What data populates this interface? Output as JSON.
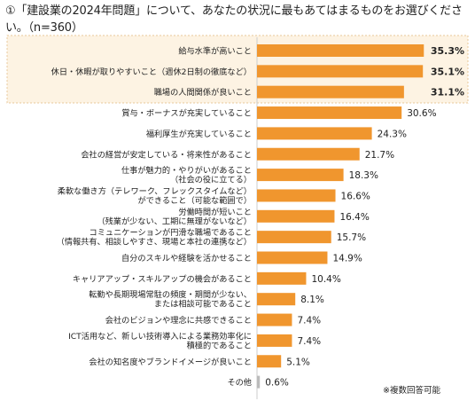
{
  "title": "①「建設業の2024年問題」について、あなたの状況に最もあてはまるものをお選びください。（n=360）",
  "note": "※複数回答可能",
  "colors": {
    "bar": "#f0962e",
    "highlight_bg": "#fdf3e3",
    "highlight_border": "#e8c79a",
    "highlight_text": "#f0962e"
  },
  "chart_data": {
    "type": "bar",
    "orientation": "horizontal",
    "unit": "%",
    "categories": [
      [
        "給与水準が高いこと"
      ],
      [
        "休日・休暇が取りやすいこと（週休2日制の徹底など）"
      ],
      [
        "職場の人間関係が良いこと"
      ],
      [
        "賞与・ボーナスが充実していること"
      ],
      [
        "福利厚生が充実していること"
      ],
      [
        "会社の経営が安定している・将来性があること"
      ],
      [
        "仕事が魅力的・やりがいがあること",
        "（社会の役に立てる）"
      ],
      [
        "柔軟な働き方（テレワーク、フレックスタイムなど）",
        "ができること（可能な範囲で）"
      ],
      [
        "労働時間が短いこと",
        "（残業が少ない、工期に無理がないなど）"
      ],
      [
        "コミュニケーションが円滑な職場であること",
        "（情報共有、相談しやすさ、現場と本社の連携など）"
      ],
      [
        "自分のスキルや経験を活かせること"
      ],
      [
        "キャリアアップ・スキルアップの機会があること"
      ],
      [
        "転勤や長期現場常駐の頻度・期間が少ない、",
        "または相談可能であること"
      ],
      [
        "会社のビジョンや理念に共感できること"
      ],
      [
        "ICT活用など、新しい技術導入による業務効率化に",
        "積極的であること"
      ],
      [
        "会社の知名度やブランドイメージが良いこと"
      ],
      [
        "その他"
      ]
    ],
    "values": [
      35.3,
      35.1,
      31.1,
      30.6,
      24.3,
      21.7,
      18.3,
      16.6,
      16.4,
      15.7,
      14.9,
      10.4,
      8.1,
      7.4,
      7.4,
      5.1,
      0.6
    ],
    "value_labels": [
      "35.3%",
      "35.1%",
      "31.1%",
      "30.6%",
      "24.3%",
      "21.7%",
      "18.3%",
      "16.6%",
      "16.4%",
      "15.7%",
      "14.9%",
      "10.4%",
      "8.1%",
      "7.4%",
      "7.4%",
      "5.1%",
      "0.6%"
    ],
    "highlighted_top": 3,
    "last_bar_color": "#bbbbbb"
  }
}
